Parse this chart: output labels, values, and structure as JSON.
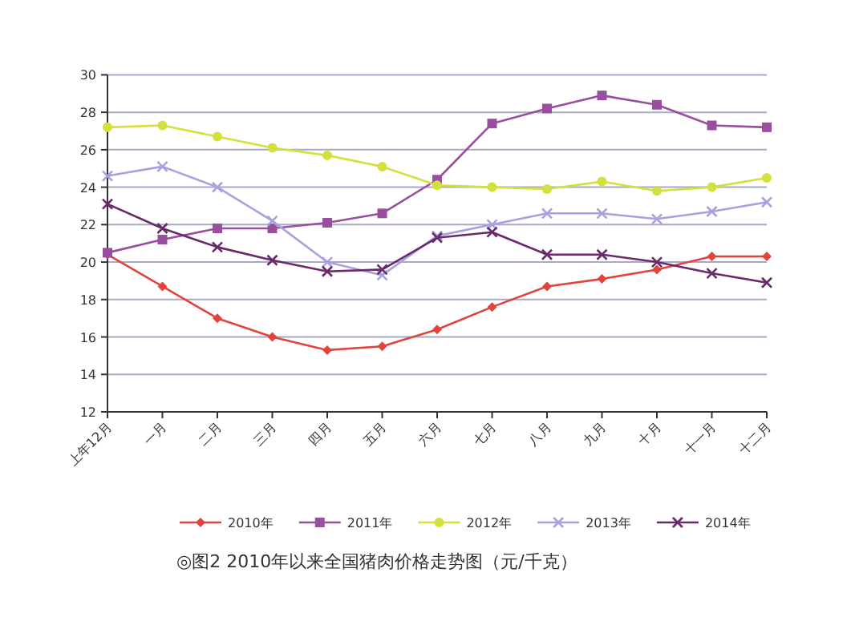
{
  "chart_data": {
    "type": "line",
    "categories": [
      "上年12月",
      "一月",
      "二月",
      "三月",
      "四月",
      "五月",
      "六月",
      "七月",
      "八月",
      "九月",
      "十月",
      "十一月",
      "十二月"
    ],
    "series": [
      {
        "name": "2010年",
        "color": "#e0443c",
        "marker": "diamond",
        "values": [
          20.4,
          18.7,
          17.0,
          16.0,
          15.3,
          15.5,
          16.4,
          17.6,
          18.7,
          19.1,
          19.6,
          20.3,
          20.3
        ]
      },
      {
        "name": "2011年",
        "color": "#9a4e9e",
        "marker": "square",
        "values": [
          20.5,
          21.2,
          21.8,
          21.8,
          22.1,
          22.6,
          24.4,
          27.4,
          28.2,
          28.9,
          28.4,
          27.3,
          27.2
        ]
      },
      {
        "name": "2012年",
        "color": "#d4e03c",
        "marker": "circle",
        "values": [
          27.2,
          27.3,
          26.7,
          26.1,
          25.7,
          25.1,
          24.1,
          24.0,
          23.9,
          24.3,
          23.8,
          24.0,
          24.5
        ]
      },
      {
        "name": "2013年",
        "color": "#a9a0e0",
        "marker": "cross",
        "values": [
          24.6,
          25.1,
          24.0,
          22.2,
          20.0,
          19.3,
          21.4,
          22.0,
          22.6,
          22.6,
          22.3,
          22.7,
          23.2
        ]
      },
      {
        "name": "2014年",
        "color": "#6a2a6a",
        "marker": "cross",
        "values": [
          23.1,
          21.8,
          20.8,
          20.1,
          19.5,
          19.6,
          21.3,
          21.6,
          20.4,
          20.4,
          20.0,
          19.4,
          18.9
        ]
      }
    ],
    "ylim": [
      12,
      30
    ],
    "yticks": [
      12,
      14,
      16,
      18,
      20,
      22,
      24,
      26,
      28,
      30
    ],
    "grid": "y",
    "legend": "bottom",
    "line_style": "solid",
    "annotations": [
      "◎图2  2010年以来全国猪肉价格走势图（元/千克）"
    ]
  }
}
